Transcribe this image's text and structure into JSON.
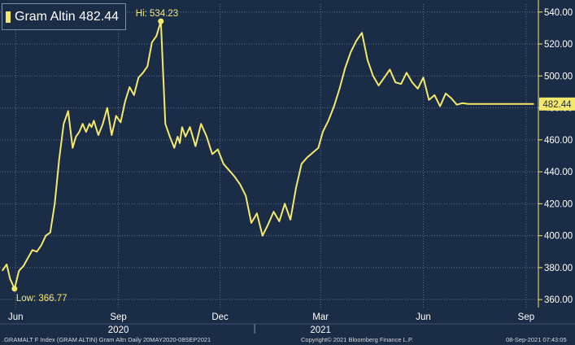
{
  "legend": {
    "label": "Gram Altin 482.44",
    "color": "#f5e96b"
  },
  "footer": {
    "left": ".GRAMALT F Index (GRAM ALTIN) Gram Altn  Daily 20MAY2020-08SEP2021",
    "center": "Copyright© 2021 Bloomberg Finance L.P.",
    "right": "08-Sep-2021 07:43:05"
  },
  "colors": {
    "background": "#1b2c46",
    "line": "#f5e96b",
    "grid": "#5b6e8c",
    "text": "#ffffff"
  },
  "chart_data": {
    "type": "line",
    "series": [
      {
        "name": "Gram Altin",
        "x": [
          "2020-05-20",
          "2020-05-24",
          "2020-05-27",
          "2020-05-31",
          "2020-06-04",
          "2020-06-08",
          "2020-06-12",
          "2020-06-16",
          "2020-06-20",
          "2020-06-24",
          "2020-06-28",
          "2020-07-02",
          "2020-07-06",
          "2020-07-10",
          "2020-07-14",
          "2020-07-18",
          "2020-07-22",
          "2020-07-25",
          "2020-07-28",
          "2020-07-31",
          "2020-08-03",
          "2020-08-06",
          "2020-08-08",
          "2020-08-10",
          "2020-08-14",
          "2020-08-18",
          "2020-08-22",
          "2020-08-26",
          "2020-08-30",
          "2020-09-03",
          "2020-09-07",
          "2020-09-11",
          "2020-09-15",
          "2020-09-19",
          "2020-09-23",
          "2020-09-27",
          "2020-10-01",
          "2020-10-05",
          "2020-10-09",
          "2020-10-13",
          "2020-10-17",
          "2020-10-21",
          "2020-10-24",
          "2020-10-26",
          "2020-10-28",
          "2020-10-31",
          "2020-11-04",
          "2020-11-09",
          "2020-11-14",
          "2020-11-19",
          "2020-11-24",
          "2020-11-29",
          "2020-12-04",
          "2020-12-09",
          "2020-12-14",
          "2020-12-19",
          "2020-12-24",
          "2020-12-29",
          "2021-01-03",
          "2021-01-08",
          "2021-01-13",
          "2021-01-18",
          "2021-01-23",
          "2021-01-28",
          "2021-02-02",
          "2021-02-07",
          "2021-02-12",
          "2021-02-17",
          "2021-02-22",
          "2021-02-27",
          "2021-03-03",
          "2021-03-08",
          "2021-03-13",
          "2021-03-18",
          "2021-03-23",
          "2021-03-28",
          "2021-04-02",
          "2021-04-07",
          "2021-04-12",
          "2021-04-17",
          "2021-04-22",
          "2021-04-27",
          "2021-05-02",
          "2021-05-07",
          "2021-05-12",
          "2021-05-17",
          "2021-05-22",
          "2021-05-27",
          "2021-06-01",
          "2021-06-06",
          "2021-06-11",
          "2021-06-16",
          "2021-06-21",
          "2021-06-26",
          "2021-07-01",
          "2021-07-06",
          "2021-07-11",
          "2021-07-16",
          "2021-07-21",
          "2021-07-26",
          "2021-07-31",
          "2021-08-05",
          "2021-08-10",
          "2021-08-15",
          "2021-08-20",
          "2021-08-25",
          "2021-08-30",
          "2021-09-04",
          "2021-09-08"
        ],
        "values": [
          378,
          382,
          373,
          366.77,
          378,
          381,
          386,
          391,
          390,
          394,
          400,
          402,
          420,
          448,
          470,
          478,
          455,
          462,
          465,
          470,
          465,
          470,
          468,
          472,
          463,
          470,
          480,
          463,
          475,
          471,
          484,
          493,
          488,
          499,
          502,
          506,
          521,
          525,
          534.23,
          470,
          462,
          455,
          462,
          458,
          468,
          462,
          468,
          456,
          470,
          462,
          451,
          454,
          445,
          441,
          437,
          432,
          425,
          408,
          414,
          400,
          407,
          415,
          409,
          420,
          410,
          430,
          445,
          449,
          452,
          455,
          465,
          472,
          481,
          492,
          505,
          515,
          522,
          527,
          510,
          500,
          494,
          499,
          504,
          496,
          495,
          502,
          496,
          492,
          499,
          485,
          488,
          481,
          489,
          486,
          482,
          483,
          482.44,
          482.44,
          482.44,
          482.44,
          482.44,
          482.44,
          482.44,
          482.44,
          482.44,
          482.44,
          482.44,
          482.44,
          482.44
        ],
        "color": "#f5e96b"
      }
    ],
    "ylim": [
      355,
      545
    ],
    "yticks": [
      360,
      380,
      400,
      420,
      440,
      460,
      480,
      500,
      520,
      540
    ],
    "xticks": [
      {
        "label": "Jun",
        "date": "2020-06-01"
      },
      {
        "label": "Sep",
        "date": "2020-09-01"
      },
      {
        "label": "Dec",
        "date": "2020-12-01"
      },
      {
        "label": "Mar",
        "date": "2021-03-01"
      },
      {
        "label": "Jun",
        "date": "2021-06-01"
      },
      {
        "label": "Sep",
        "date": "2021-09-01"
      }
    ],
    "year_labels": [
      {
        "label": "2020",
        "date": "2020-09-01"
      },
      {
        "label": "2021",
        "date": "2021-03-01"
      }
    ],
    "year_dividers": [
      "2021-01-01"
    ],
    "annotations": [
      {
        "label": "Hi: 534.23",
        "date": "2020-10-09",
        "value": 534.23
      },
      {
        "label": "Low: 366.77",
        "date": "2020-05-31",
        "value": 366.77
      }
    ],
    "last_value": {
      "label": "482.44",
      "value": 482.44
    },
    "grid": true
  }
}
